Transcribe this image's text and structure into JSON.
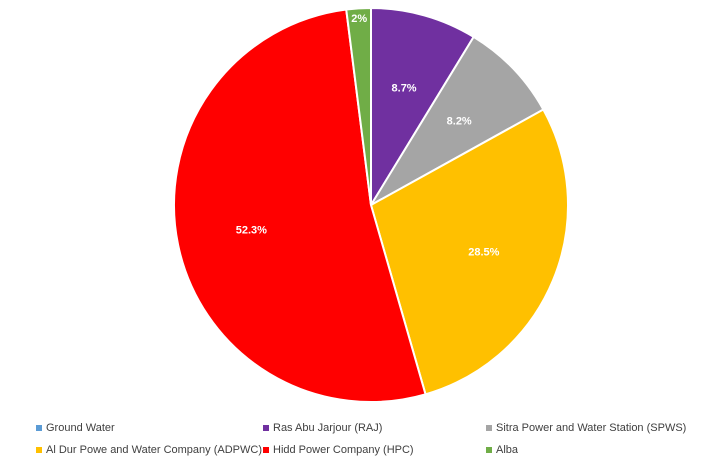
{
  "chart_data": {
    "type": "pie",
    "categories": [
      "Ground Water",
      "Ras Abu Jarjour (RAJ)",
      "Sitra Power and Water Station (SPWS)",
      "Al Dur Powe and Water Company (ADPWC)",
      "Hidd Power Company (HPC)",
      "Alba"
    ],
    "values": [
      0,
      8.7,
      8.2,
      28.5,
      52.3,
      2
    ],
    "data_labels": [
      "",
      "8.7%",
      "8.2%",
      "28.5%",
      "52.3%",
      "2%"
    ],
    "colors": [
      "#5b9bd5",
      "#7030a0",
      "#a5a5a5",
      "#ffc000",
      "#ff0000",
      "#70ad47"
    ],
    "start_angle_deg": 0,
    "direction": "clockwise",
    "legend_position": "bottom",
    "label_color": "#ffffff",
    "title": ""
  }
}
